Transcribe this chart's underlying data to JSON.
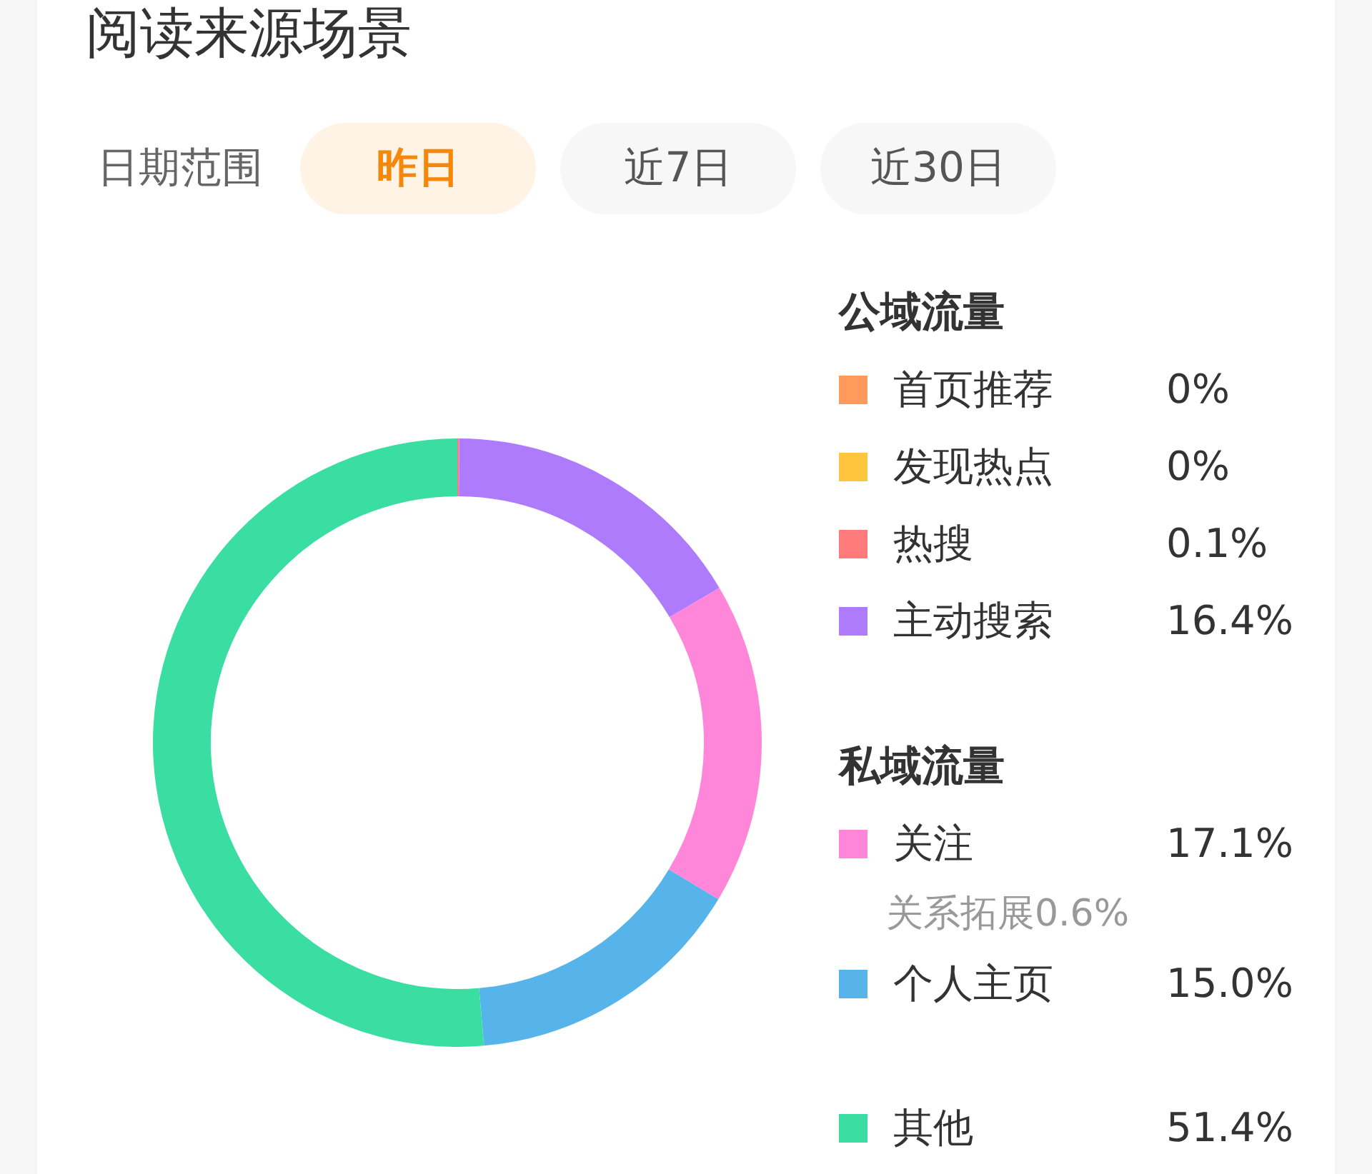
{
  "chart_data": {
    "type": "donut",
    "title": "阅读来源场景",
    "categories": [
      "首页推荐",
      "发现热点",
      "热搜",
      "主动搜索",
      "关注",
      "个人主页",
      "其他"
    ],
    "values": [
      0,
      0,
      0.1,
      16.4,
      17.1,
      15.0,
      51.4
    ],
    "colors": [
      "#ff9a5c",
      "#ffc53d",
      "#ff7a7a",
      "#ae7bfc",
      "#ff86d9",
      "#56b4ea",
      "#3adea2"
    ],
    "value_labels": [
      "0%",
      "0%",
      "0.1%",
      "16.4%",
      "17.1%",
      "15.0%",
      "51.4%"
    ],
    "legend": "right",
    "annotations": [
      "日期范围",
      "昨日",
      "近7日",
      "近30日",
      "公域流量",
      "私域流量",
      "关系拓展0.6%"
    ]
  }
}
